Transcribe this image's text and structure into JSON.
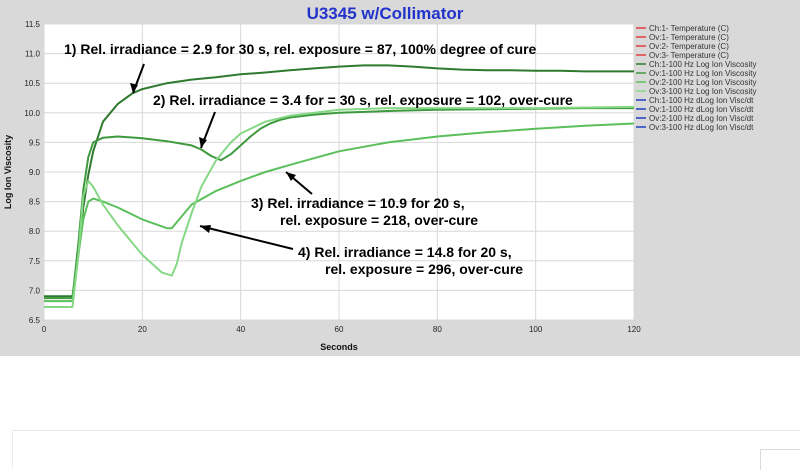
{
  "chart_data": {
    "type": "line",
    "title": "U3345 w/Collimator",
    "xlabel": "Seconds",
    "ylabel": "Log Ion Viscosity",
    "xlim": [
      0,
      120
    ],
    "ylim": [
      6.5,
      11.5
    ],
    "xticks": [
      "0",
      "20",
      "40",
      "60",
      "80",
      "100",
      "120"
    ],
    "yticks": [
      "6.5",
      "7.0",
      "7.5",
      "8.0",
      "8.5",
      "9.0",
      "9.5",
      "10.0",
      "10.5",
      "11.0",
      "11.5"
    ],
    "grid": true,
    "legend_position": "right",
    "legend": [
      {
        "label": "Ch:1- Temperature (C)",
        "color": "#e04040"
      },
      {
        "label": "Ov:1- Temperature (C)",
        "color": "#e04040"
      },
      {
        "label": "Ov:2- Temperature (C)",
        "color": "#e04040"
      },
      {
        "label": "Ov:3- Temperature (C)",
        "color": "#e04040"
      },
      {
        "label": "Ch:1-100 Hz Log Ion Viscosity",
        "color": "#2f7a2f"
      },
      {
        "label": "Ov:1-100 Hz Log Ion Viscosity",
        "color": "#3f9a3f"
      },
      {
        "label": "Ov:2-100 Hz Log Ion Viscosity",
        "color": "#5bbf5b"
      },
      {
        "label": "Ov:3-100 Hz Log Ion Viscosity",
        "color": "#86d886"
      },
      {
        "label": "Ch:1-100 Hz dLog Ion Visc/dt",
        "color": "#2040c0"
      },
      {
        "label": "Ov:1-100 Hz dLog Ion Visc/dt",
        "color": "#2040c0"
      },
      {
        "label": "Ov:2-100 Hz dLog Ion Visc/dt",
        "color": "#2040c0"
      },
      {
        "label": "Ov:3-100 Hz dLog Ion Visc/dt",
        "color": "#2040c0"
      }
    ],
    "series": [
      {
        "name": "Ch:1-100 Hz Log Ion Viscosity",
        "color": "#2f7a2f",
        "x": [
          0,
          5,
          5.8,
          7,
          8,
          9,
          10,
          12,
          15,
          18,
          20,
          25,
          30,
          35,
          40,
          45,
          50,
          55,
          60,
          65,
          70,
          75,
          80,
          85,
          90,
          95,
          100,
          105,
          110,
          115,
          120
        ],
        "y": [
          6.9,
          6.9,
          6.9,
          7.6,
          8.4,
          8.95,
          9.35,
          9.85,
          10.15,
          10.33,
          10.4,
          10.5,
          10.56,
          10.6,
          10.65,
          10.68,
          10.72,
          10.75,
          10.78,
          10.8,
          10.8,
          10.78,
          10.75,
          10.73,
          10.72,
          10.72,
          10.71,
          10.71,
          10.7,
          10.7,
          10.7
        ]
      },
      {
        "name": "Ov:1-100 Hz Log Ion Viscosity",
        "color": "#3f9a3f",
        "x": [
          0,
          5,
          5.8,
          7,
          8,
          9,
          10,
          12,
          15,
          20,
          25,
          30,
          32,
          34,
          36,
          38,
          40,
          42,
          44,
          46,
          48,
          50,
          55,
          60,
          70,
          80,
          90,
          100,
          110,
          120
        ],
        "y": [
          6.87,
          6.87,
          6.87,
          7.8,
          8.7,
          9.25,
          9.5,
          9.58,
          9.6,
          9.57,
          9.52,
          9.45,
          9.38,
          9.27,
          9.2,
          9.3,
          9.45,
          9.6,
          9.73,
          9.82,
          9.88,
          9.92,
          9.97,
          10.0,
          10.03,
          10.05,
          10.06,
          10.07,
          10.08,
          10.08
        ]
      },
      {
        "name": "Ov:2-100 Hz Log Ion Viscosity",
        "color": "#5bbf5b",
        "x": [
          0,
          5,
          5.8,
          7,
          8,
          9,
          10,
          12,
          15,
          20,
          25,
          26,
          28,
          30,
          35,
          40,
          45,
          50,
          60,
          70,
          80,
          90,
          100,
          110,
          120
        ],
        "y": [
          6.82,
          6.82,
          6.82,
          7.6,
          8.2,
          8.5,
          8.55,
          8.5,
          8.4,
          8.2,
          8.05,
          8.05,
          8.25,
          8.45,
          8.68,
          8.85,
          9.0,
          9.12,
          9.35,
          9.5,
          9.6,
          9.67,
          9.73,
          9.78,
          9.82
        ]
      },
      {
        "name": "Ov:3-100 Hz Log Ion Viscosity",
        "color": "#86d886",
        "x": [
          0,
          5,
          5.8,
          7,
          8,
          9,
          10,
          12,
          15,
          18,
          20,
          24,
          26,
          27,
          28,
          30,
          32,
          35,
          38,
          40,
          45,
          50,
          60,
          70,
          80,
          90,
          100,
          110,
          120
        ],
        "y": [
          6.72,
          6.72,
          6.72,
          7.6,
          8.6,
          8.85,
          8.75,
          8.45,
          8.1,
          7.8,
          7.6,
          7.3,
          7.25,
          7.45,
          7.8,
          8.3,
          8.75,
          9.2,
          9.5,
          9.65,
          9.85,
          9.95,
          10.05,
          10.08,
          10.08,
          10.08,
          10.08,
          10.09,
          10.1
        ]
      }
    ],
    "annotations": [
      {
        "id": "a1",
        "lines": [
          "1) Rel. irradiance = 2.9 for 30 s, rel. exposure = 87, 100% degree of cure"
        ]
      },
      {
        "id": "a2",
        "lines": [
          "2) Rel. irradiance = 3.4 for = 30 s, rel. exposure = 102, over-cure"
        ]
      },
      {
        "id": "a3",
        "lines": [
          "3) Rel. irradiance = 10.9 for 20 s,",
          "rel. exposure = 218, over-cure"
        ]
      },
      {
        "id": "a4",
        "lines": [
          "4) Rel. irradiance = 14.8 for 20 s,",
          "rel. exposure = 296, over-cure"
        ]
      }
    ]
  }
}
